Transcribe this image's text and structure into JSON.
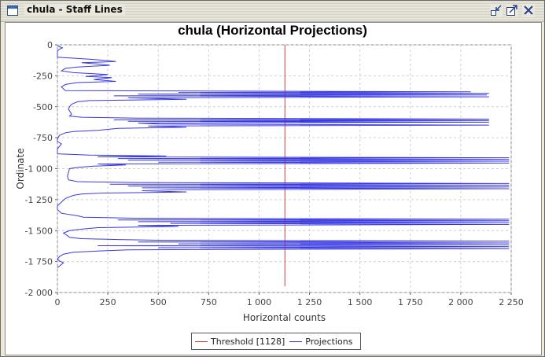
{
  "window": {
    "title": "chula - Staff Lines",
    "buttons": [
      {
        "name": "minimize-button",
        "icon": "minimize-icon"
      },
      {
        "name": "maximize-button",
        "icon": "maximize-icon"
      },
      {
        "name": "close-button",
        "icon": "close-icon"
      }
    ]
  },
  "colors": {
    "threshold": "#d63a3a",
    "projections": "#3838e0",
    "grid": "#d0d0d0"
  },
  "chart_data": {
    "type": "line",
    "title": "chula (Horizontal Projections)",
    "xlabel": "Horizontal counts",
    "ylabel": "Ordinate",
    "xlim": [
      0,
      2250
    ],
    "ylim": [
      -2000,
      0
    ],
    "xticks": [
      0,
      250,
      500,
      750,
      1000,
      1250,
      1500,
      1750,
      2000,
      2250
    ],
    "xtick_labels": [
      "0",
      "250",
      "500",
      "750",
      "1 000",
      "1 250",
      "1 500",
      "1 750",
      "2 000",
      "2 250"
    ],
    "yticks": [
      0,
      -250,
      -500,
      -750,
      -1000,
      -1250,
      -1500,
      -1750,
      -2000
    ],
    "ytick_labels": [
      "0",
      "-250",
      "-500",
      "-750",
      "-1 000",
      "-1 250",
      "-1 500",
      "-1 750",
      "-2 000"
    ],
    "grid": true,
    "legend_position": "bottom-center",
    "threshold": {
      "name": "Threshold [1128]",
      "value": 1128,
      "y_range": [
        -1950,
        0
      ]
    },
    "series": [
      {
        "name": "Projections",
        "points": [
          [
            0,
            -5
          ],
          [
            10,
            -15
          ],
          [
            25,
            -25
          ],
          [
            10,
            -35
          ],
          [
            0,
            -50
          ],
          [
            0,
            -100
          ],
          [
            150,
            -115
          ],
          [
            230,
            -125
          ],
          [
            290,
            -135
          ],
          [
            120,
            -145
          ],
          [
            200,
            -155
          ],
          [
            260,
            -165
          ],
          [
            100,
            -180
          ],
          [
            40,
            -190
          ],
          [
            20,
            -210
          ],
          [
            80,
            -225
          ],
          [
            250,
            -240
          ],
          [
            140,
            -255
          ],
          [
            270,
            -265
          ],
          [
            180,
            -280
          ],
          [
            290,
            -295
          ],
          [
            100,
            -305
          ],
          [
            40,
            -320
          ],
          [
            20,
            -340
          ],
          [
            40,
            -370
          ],
          [
            2050,
            -380
          ],
          [
            600,
            -385
          ],
          [
            2140,
            -392
          ],
          [
            400,
            -398
          ],
          [
            2130,
            -405
          ],
          [
            280,
            -412
          ],
          [
            2140,
            -420
          ],
          [
            350,
            -428
          ],
          [
            640,
            -440
          ],
          [
            160,
            -450
          ],
          [
            100,
            -460
          ],
          [
            70,
            -480
          ],
          [
            60,
            -500
          ],
          [
            55,
            -520
          ],
          [
            70,
            -560
          ],
          [
            60,
            -575
          ],
          [
            120,
            -585
          ],
          [
            400,
            -592
          ],
          [
            2140,
            -600
          ],
          [
            280,
            -606
          ],
          [
            2140,
            -612
          ],
          [
            350,
            -618
          ],
          [
            2140,
            -625
          ],
          [
            400,
            -632
          ],
          [
            500,
            -640
          ],
          [
            2140,
            -648
          ],
          [
            450,
            -655
          ],
          [
            640,
            -665
          ],
          [
            300,
            -675
          ],
          [
            200,
            -690
          ],
          [
            80,
            -700
          ],
          [
            40,
            -710
          ],
          [
            10,
            -730
          ],
          [
            0,
            -760
          ],
          [
            0,
            -780
          ],
          [
            20,
            -800
          ],
          [
            10,
            -820
          ],
          [
            0,
            -840
          ],
          [
            0,
            -880
          ],
          [
            160,
            -890
          ],
          [
            540,
            -898
          ],
          [
            200,
            -905
          ],
          [
            2240,
            -912
          ],
          [
            300,
            -918
          ],
          [
            2240,
            -925
          ],
          [
            350,
            -932
          ],
          [
            2240,
            -940
          ],
          [
            500,
            -948
          ],
          [
            2240,
            -955
          ],
          [
            200,
            -962
          ],
          [
            340,
            -970
          ],
          [
            180,
            -980
          ],
          [
            100,
            -990
          ],
          [
            60,
            -1000
          ],
          [
            55,
            -1030
          ],
          [
            50,
            -1060
          ],
          [
            55,
            -1090
          ],
          [
            100,
            -1105
          ],
          [
            380,
            -1112
          ],
          [
            2240,
            -1120
          ],
          [
            260,
            -1126
          ],
          [
            2240,
            -1133
          ],
          [
            350,
            -1140
          ],
          [
            2240,
            -1148
          ],
          [
            420,
            -1155
          ],
          [
            2240,
            -1162
          ],
          [
            600,
            -1170
          ],
          [
            420,
            -1178
          ],
          [
            640,
            -1188
          ],
          [
            200,
            -1198
          ],
          [
            120,
            -1205
          ],
          [
            80,
            -1215
          ],
          [
            40,
            -1240
          ],
          [
            20,
            -1270
          ],
          [
            0,
            -1300
          ],
          [
            0,
            -1330
          ],
          [
            20,
            -1360
          ],
          [
            100,
            -1380
          ],
          [
            130,
            -1392
          ],
          [
            380,
            -1400
          ],
          [
            2240,
            -1408
          ],
          [
            300,
            -1414
          ],
          [
            2240,
            -1421
          ],
          [
            400,
            -1428
          ],
          [
            2240,
            -1435
          ],
          [
            560,
            -1442
          ],
          [
            2240,
            -1450
          ],
          [
            400,
            -1458
          ],
          [
            600,
            -1466
          ],
          [
            200,
            -1476
          ],
          [
            120,
            -1488
          ],
          [
            60,
            -1500
          ],
          [
            30,
            -1520
          ],
          [
            50,
            -1540
          ],
          [
            60,
            -1555
          ],
          [
            120,
            -1565
          ],
          [
            300,
            -1572
          ],
          [
            500,
            -1578
          ],
          [
            2240,
            -1585
          ],
          [
            400,
            -1592
          ],
          [
            2240,
            -1600
          ],
          [
            600,
            -1607
          ],
          [
            2240,
            -1615
          ],
          [
            200,
            -1622
          ],
          [
            2240,
            -1630
          ],
          [
            500,
            -1638
          ],
          [
            2240,
            -1646
          ],
          [
            350,
            -1655
          ],
          [
            200,
            -1665
          ],
          [
            80,
            -1675
          ],
          [
            30,
            -1690
          ],
          [
            10,
            -1710
          ],
          [
            0,
            -1730
          ],
          [
            10,
            -1745
          ],
          [
            30,
            -1760
          ],
          [
            15,
            -1780
          ],
          [
            0,
            -1800
          ]
        ]
      }
    ]
  }
}
